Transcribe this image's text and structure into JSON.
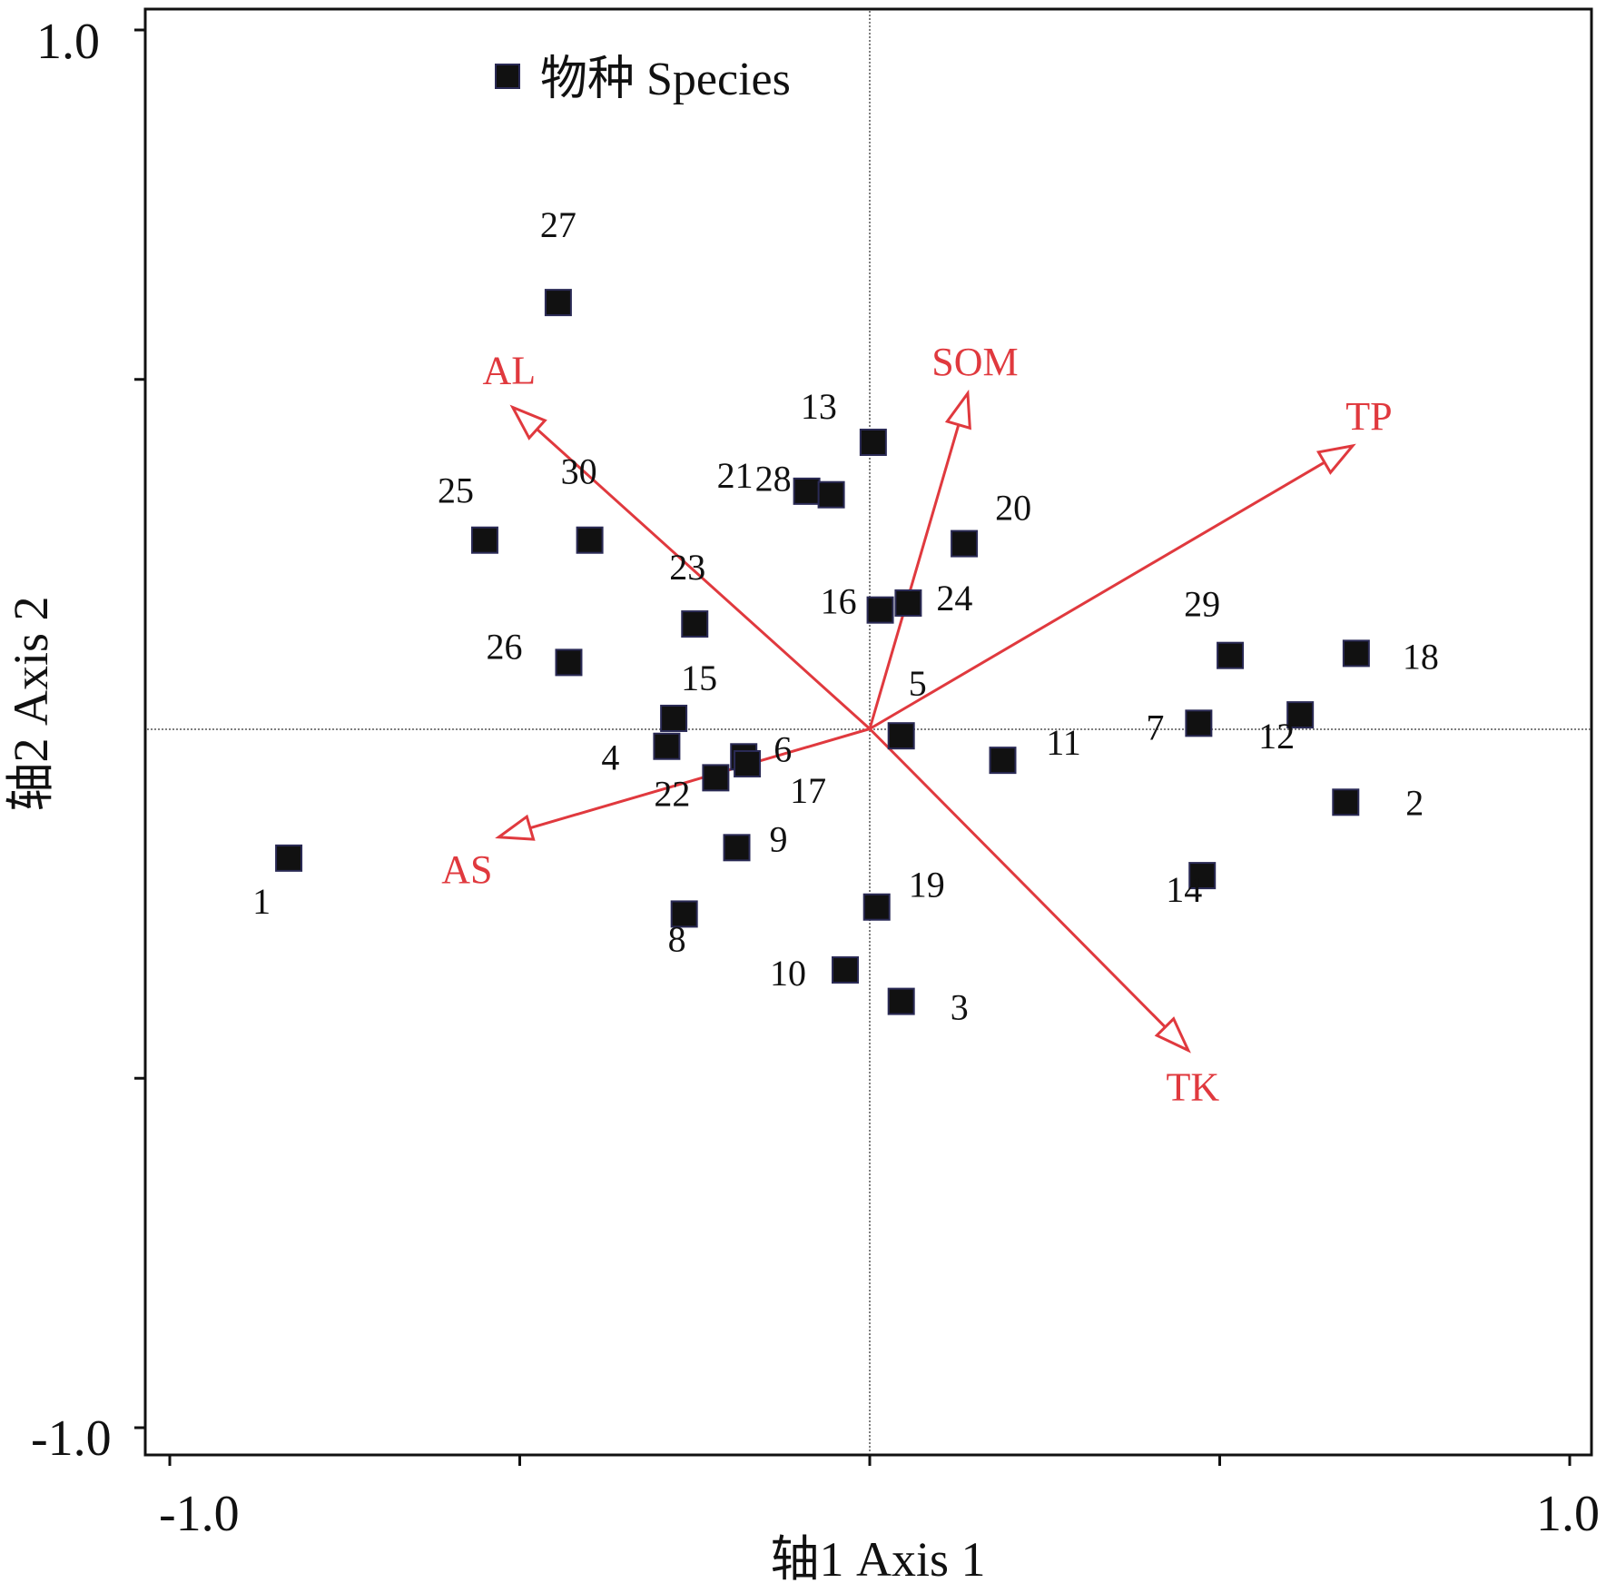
{
  "chart_data": {
    "type": "scatter",
    "title": "",
    "xlabel": "轴1 Axis 1",
    "ylabel": "轴2 Axis 2",
    "xlim": [
      -1.0,
      1.0
    ],
    "ylim": [
      -1.0,
      1.0
    ],
    "x_tick_labels": [
      {
        "value": -1.0,
        "label": "-1.0"
      },
      {
        "value": 1.0,
        "label": "1.0"
      }
    ],
    "y_tick_labels": [
      {
        "value": 1.0,
        "label": "1.0"
      },
      {
        "value": -1.0,
        "label": "-1.0"
      }
    ],
    "minor_ticks": [
      -0.5,
      0.5
    ],
    "legend": {
      "label": "物种 Species",
      "placement": "top-left"
    },
    "species": [
      {
        "id": "1",
        "x": -0.83,
        "y": -0.185
      },
      {
        "id": "2",
        "x": 0.68,
        "y": -0.105
      },
      {
        "id": "3",
        "x": 0.045,
        "y": -0.39
      },
      {
        "id": "4",
        "x": -0.29,
        "y": -0.025
      },
      {
        "id": "5",
        "x": 0.045,
        "y": -0.01
      },
      {
        "id": "6",
        "x": -0.18,
        "y": -0.04
      },
      {
        "id": "7",
        "x": 0.47,
        "y": 0.008
      },
      {
        "id": "8",
        "x": -0.265,
        "y": -0.265
      },
      {
        "id": "9",
        "x": -0.19,
        "y": -0.17
      },
      {
        "id": "10",
        "x": -0.035,
        "y": -0.345
      },
      {
        "id": "11",
        "x": 0.19,
        "y": -0.045
      },
      {
        "id": "12",
        "x": 0.615,
        "y": 0.02
      },
      {
        "id": "13",
        "x": 0.005,
        "y": 0.41
      },
      {
        "id": "14",
        "x": 0.475,
        "y": -0.21
      },
      {
        "id": "15",
        "x": -0.28,
        "y": 0.015
      },
      {
        "id": "16",
        "x": 0.015,
        "y": 0.17
      },
      {
        "id": "17",
        "x": -0.175,
        "y": -0.05
      },
      {
        "id": "18",
        "x": 0.695,
        "y": 0.108
      },
      {
        "id": "19",
        "x": 0.01,
        "y": -0.255
      },
      {
        "id": "20",
        "x": 0.135,
        "y": 0.265
      },
      {
        "id": "21",
        "x": -0.09,
        "y": 0.34
      },
      {
        "id": "22",
        "x": -0.22,
        "y": -0.07
      },
      {
        "id": "23",
        "x": -0.25,
        "y": 0.15
      },
      {
        "id": "24",
        "x": 0.055,
        "y": 0.18
      },
      {
        "id": "25",
        "x": -0.55,
        "y": 0.27
      },
      {
        "id": "26",
        "x": -0.43,
        "y": 0.095
      },
      {
        "id": "27",
        "x": -0.445,
        "y": 0.61
      },
      {
        "id": "28",
        "x": -0.055,
        "y": 0.335
      },
      {
        "id": "29",
        "x": 0.515,
        "y": 0.105
      },
      {
        "id": "30",
        "x": -0.4,
        "y": 0.27
      }
    ],
    "environment_vectors": [
      {
        "name": "AL",
        "x": -0.51,
        "y": 0.46
      },
      {
        "name": "SOM",
        "x": 0.14,
        "y": 0.48
      },
      {
        "name": "TP",
        "x": 0.69,
        "y": 0.405
      },
      {
        "name": "AS",
        "x": -0.53,
        "y": -0.155
      },
      {
        "name": "TK",
        "x": 0.455,
        "y": -0.46
      }
    ],
    "colors": {
      "points": "#111111",
      "vectors": "#e0393e",
      "axes": "#111111",
      "guides": "#555555"
    }
  }
}
